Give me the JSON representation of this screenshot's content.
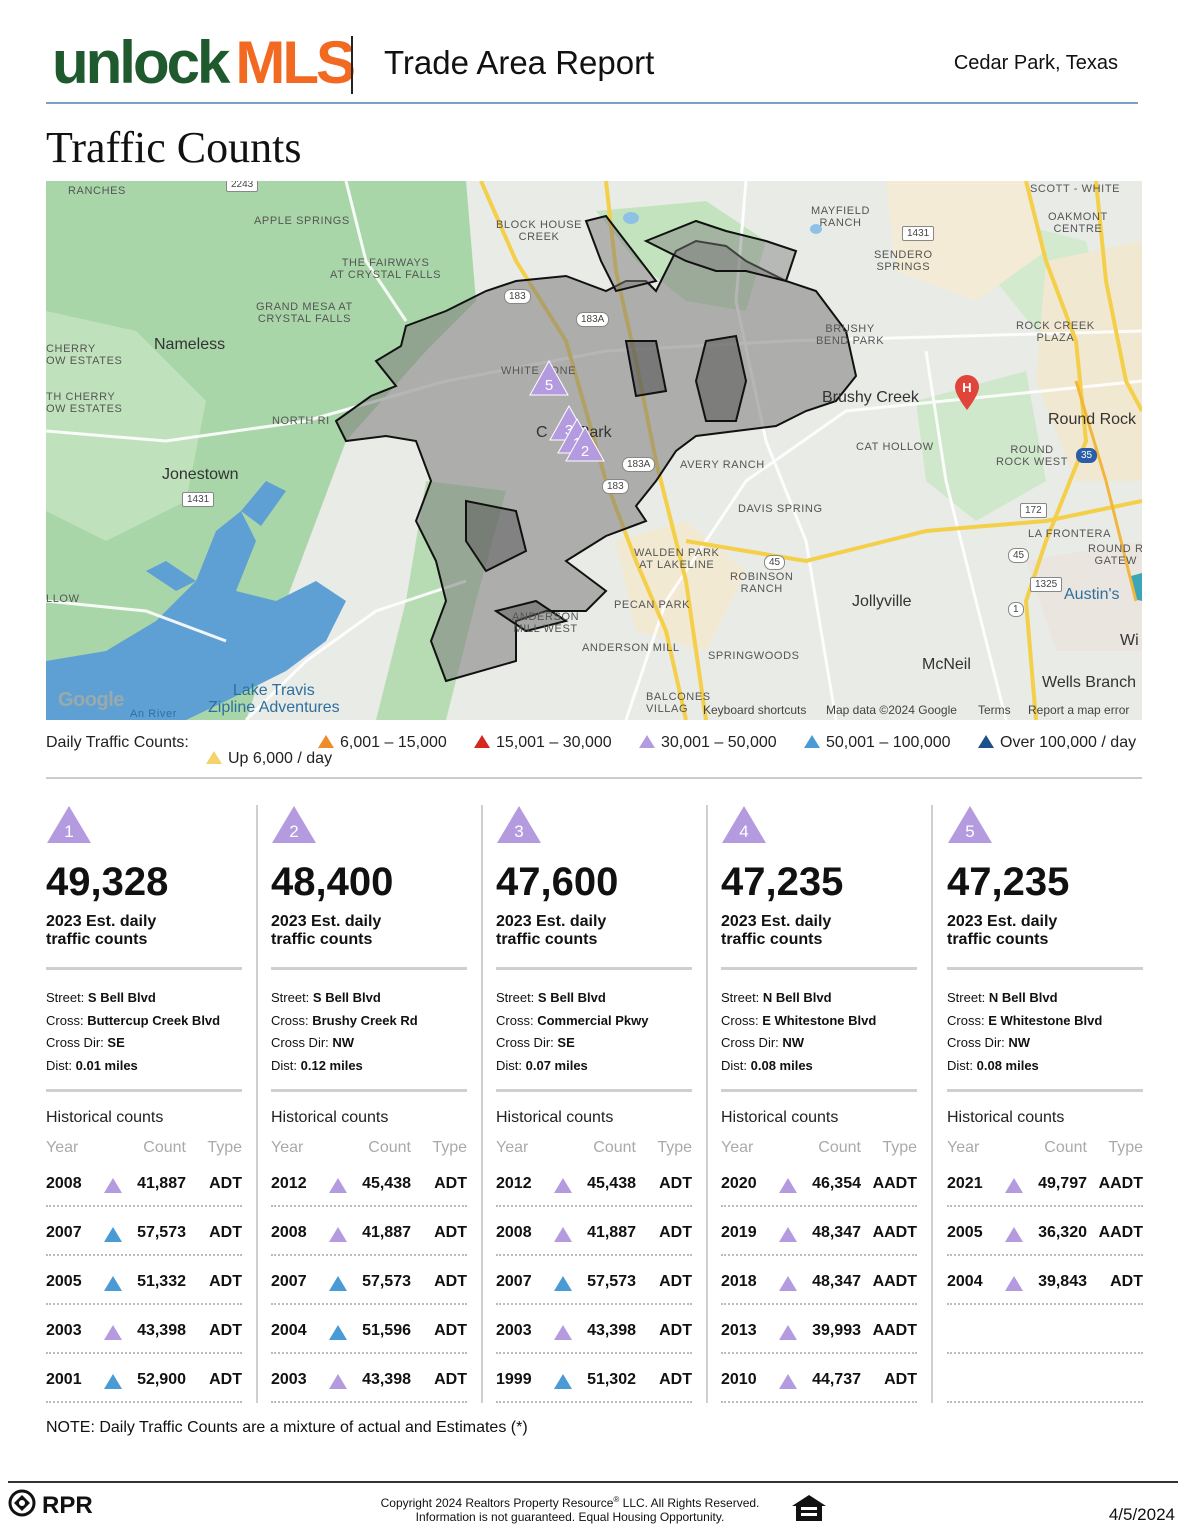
{
  "header": {
    "logo_unlock": "unlock",
    "logo_mls": "MLS",
    "title": "Trade Area Report",
    "location": "Cedar Park, Texas"
  },
  "section_title": "Traffic Counts",
  "map": {
    "labels": {
      "ranches": "RANCHES",
      "apple_springs": "APPLE SPRINGS",
      "block_house_creek": "BLOCK HOUSE\nCREEK",
      "mayfield_ranch": "MAYFIELD\nRANCH",
      "sendero_springs": "SENDERO\nSPRINGS",
      "scott_white": "SCOTT - WHITE",
      "oakmont_centre": "OAKMONT\nCENTRE",
      "fairways": "THE FAIRWAYS\nAT CRYSTAL FALLS",
      "grand_mesa": "GRAND MESA AT\nCRYSTAL FALLS",
      "cherry_ow_1": "CHERRY\nOW ESTATES",
      "cherry_ow_2": "TH CHERRY\nOW ESTATES",
      "nameless": "Nameless",
      "north_ri": "NORTH RI",
      "white_stone": "WHITE   ONE",
      "cedar_park": "C       Park",
      "brushy_bend": "BRUSHY\nBEND PARK",
      "brushy_creek": "Brushy Creek",
      "rock_creek_plaza": "ROCK CREEK\nPLAZA",
      "round_rock": "Round Rock",
      "round_rock_west": "ROUND\nROCK WEST",
      "cat_hollow": "CAT HOLLOW",
      "avery_ranch": "AVERY RANCH",
      "jonestown": "Jonestown",
      "davis_spring": "DAVIS SPRING",
      "la_frontera": "LA FRONTERA",
      "round_r_gatew": "ROUND R\nGATEW",
      "walden_park": "WALDEN PARK\nAT LAKELINE",
      "robinson_ranch": "ROBINSON\nRANCH",
      "pecan_park": "PECAN PARK",
      "anderson_mill_west": "ANDERSON\nMILL WEST",
      "anderson_mill": "ANDERSON MILL",
      "springwoods": "SPRINGWOODS",
      "jollyville": "Jollyville",
      "austins": "Austin's",
      "mcneil": "McNeil",
      "wells_branch": "Wells Branch",
      "wi": "Wi",
      "llow": "LLOW",
      "balcones": "BALCONES\nVILLAG",
      "lake_travis": "Lake Travis\nZipline Adventures",
      "an_river": "An River"
    },
    "shields": [
      "2243",
      "1431",
      "1431",
      "183",
      "183A",
      "183A",
      "183",
      "45",
      "45",
      "172",
      "1325",
      "1",
      "35"
    ],
    "markers": [
      "1",
      "2",
      "3",
      "4",
      "5"
    ],
    "google": "Google",
    "attribution": {
      "shortcuts": "Keyboard shortcuts",
      "map_data": "Map data ©2024 Google",
      "terms": "Terms",
      "report": "Report a map error"
    }
  },
  "legend": {
    "label": "Daily Traffic Counts:",
    "items": [
      {
        "text": "Up 6,000 / day",
        "color": "#f5d36b"
      },
      {
        "text": "6,001 – 15,000",
        "color": "#f08a2a"
      },
      {
        "text": "15,001 – 30,000",
        "color": "#d5281f"
      },
      {
        "text": "30,001 – 50,000",
        "color": "#b49be0"
      },
      {
        "text": "50,001 – 100,000",
        "color": "#4a9ad6"
      },
      {
        "text": "Over 100,000 / day",
        "color": "#1d4f8a"
      }
    ]
  },
  "labels": {
    "est": "2023 Est. daily\ntraffic counts",
    "street": "Street:",
    "cross": "Cross:",
    "cross_dir": "Cross Dir:",
    "dist": "Dist:",
    "historical": "Historical counts",
    "year": "Year",
    "count": "Count",
    "type": "Type"
  },
  "cards": [
    {
      "id": "1",
      "count": "49,328",
      "street": "S Bell Blvd",
      "cross": "Buttercup Creek Blvd",
      "cross_dir": "SE",
      "dist": "0.01 miles",
      "history": [
        {
          "year": "2008",
          "level": "30,001 – 50,000",
          "count": "41,887",
          "type": "ADT"
        },
        {
          "year": "2007",
          "level": "50,001 – 100,000",
          "count": "57,573",
          "type": "ADT"
        },
        {
          "year": "2005",
          "level": "50,001 – 100,000",
          "count": "51,332",
          "type": "ADT"
        },
        {
          "year": "2003",
          "level": "30,001 – 50,000",
          "count": "43,398",
          "type": "ADT"
        },
        {
          "year": "2001",
          "level": "50,001 – 100,000",
          "count": "52,900",
          "type": "ADT"
        }
      ]
    },
    {
      "id": "2",
      "count": "48,400",
      "street": "S Bell Blvd",
      "cross": "Brushy Creek Rd",
      "cross_dir": "NW",
      "dist": "0.12 miles",
      "history": [
        {
          "year": "2012",
          "level": "30,001 – 50,000",
          "count": "45,438",
          "type": "ADT"
        },
        {
          "year": "2008",
          "level": "30,001 – 50,000",
          "count": "41,887",
          "type": "ADT"
        },
        {
          "year": "2007",
          "level": "50,001 – 100,000",
          "count": "57,573",
          "type": "ADT"
        },
        {
          "year": "2004",
          "level": "50,001 – 100,000",
          "count": "51,596",
          "type": "ADT"
        },
        {
          "year": "2003",
          "level": "30,001 – 50,000",
          "count": "43,398",
          "type": "ADT"
        }
      ]
    },
    {
      "id": "3",
      "count": "47,600",
      "street": "S Bell Blvd",
      "cross": "Commercial Pkwy",
      "cross_dir": "SE",
      "dist": "0.07 miles",
      "history": [
        {
          "year": "2012",
          "level": "30,001 – 50,000",
          "count": "45,438",
          "type": "ADT"
        },
        {
          "year": "2008",
          "level": "30,001 – 50,000",
          "count": "41,887",
          "type": "ADT"
        },
        {
          "year": "2007",
          "level": "50,001 – 100,000",
          "count": "57,573",
          "type": "ADT"
        },
        {
          "year": "2003",
          "level": "30,001 – 50,000",
          "count": "43,398",
          "type": "ADT"
        },
        {
          "year": "1999",
          "level": "50,001 – 100,000",
          "count": "51,302",
          "type": "ADT"
        }
      ]
    },
    {
      "id": "4",
      "count": "47,235",
      "street": "N Bell Blvd",
      "cross": "E Whitestone Blvd",
      "cross_dir": "NW",
      "dist": "0.08 miles",
      "history": [
        {
          "year": "2020",
          "level": "30,001 – 50,000",
          "count": "46,354",
          "type": "AADT"
        },
        {
          "year": "2019",
          "level": "30,001 – 50,000",
          "count": "48,347",
          "type": "AADT"
        },
        {
          "year": "2018",
          "level": "30,001 – 50,000",
          "count": "48,347",
          "type": "AADT"
        },
        {
          "year": "2013",
          "level": "30,001 – 50,000",
          "count": "39,993",
          "type": "AADT"
        },
        {
          "year": "2010",
          "level": "30,001 – 50,000",
          "count": "44,737",
          "type": "ADT"
        }
      ]
    },
    {
      "id": "5",
      "count": "47,235",
      "street": "N Bell Blvd",
      "cross": "E Whitestone Blvd",
      "cross_dir": "NW",
      "dist": "0.08 miles",
      "history": [
        {
          "year": "2021",
          "level": "30,001 – 50,000",
          "count": "49,797",
          "type": "AADT"
        },
        {
          "year": "2005",
          "level": "30,001 – 50,000",
          "count": "36,320",
          "type": "AADT"
        },
        {
          "year": "2004",
          "level": "30,001 – 50,000",
          "count": "39,843",
          "type": "ADT"
        }
      ]
    }
  ],
  "note": "NOTE: Daily Traffic Counts are a mixture of actual and Estimates (*)",
  "footer": {
    "brand": "RPR",
    "reg": "®",
    "copyright_pre": "Copyright 2024 Realtors Property Resource",
    "copyright_post": " LLC. All Rights Reserved.",
    "copyright_line2": "Information is not guaranteed. Equal Housing Opportunity.",
    "date": "4/5/2024"
  },
  "colors": {
    "logo_green": "#1f5a2e",
    "logo_orange": "#f26a22",
    "marker_purple": "#b49be0",
    "marker_blue": "#4a9ad6"
  }
}
